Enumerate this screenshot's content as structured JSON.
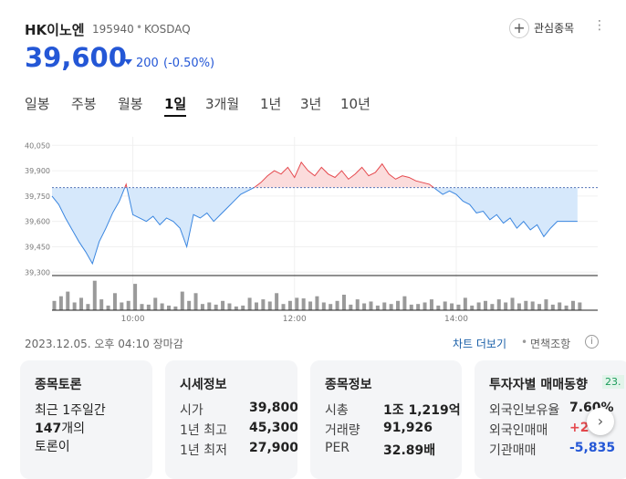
{
  "header": {
    "name": "HK이노엔",
    "code": "195940",
    "market": "KOSDAQ",
    "watch": "관심종목",
    "price": "39,600",
    "change": "200",
    "change_pct": "(-0.50%)"
  },
  "tabs": [
    "일봉",
    "주봉",
    "월봉",
    "1일",
    "3개월",
    "1년",
    "3년",
    "10년"
  ],
  "active_tab": 3,
  "chart": {
    "type": "line",
    "x": [
      0,
      5,
      10,
      15,
      20,
      25,
      30,
      35,
      40,
      45,
      50,
      55,
      60,
      65,
      70,
      75,
      80,
      85,
      90,
      95,
      100,
      105,
      110,
      115,
      120,
      125,
      130,
      135,
      140,
      145,
      150,
      155,
      160,
      165,
      170,
      175,
      180,
      185,
      190,
      195,
      200,
      205,
      210,
      215,
      220,
      225,
      230,
      235,
      240,
      245,
      250,
      255,
      260,
      265,
      270,
      275,
      280,
      285,
      290,
      295,
      300,
      305,
      310,
      315,
      320,
      325,
      330,
      335,
      340,
      345,
      350,
      355,
      360,
      365,
      370,
      375,
      380,
      385,
      390
    ],
    "values": [
      39750,
      39700,
      39620,
      39550,
      39480,
      39420,
      39350,
      39480,
      39560,
      39650,
      39720,
      39820,
      39640,
      39620,
      39600,
      39630,
      39580,
      39620,
      39600,
      39560,
      39450,
      39640,
      39620,
      39650,
      39600,
      39640,
      39680,
      39720,
      39760,
      39780,
      39800,
      39830,
      39870,
      39900,
      39880,
      39920,
      39860,
      39950,
      39900,
      39870,
      39920,
      39880,
      39860,
      39900,
      39850,
      39880,
      39920,
      39870,
      39890,
      39940,
      39880,
      39850,
      39870,
      39860,
      39840,
      39830,
      39820,
      39790,
      39760,
      39780,
      39760,
      39720,
      39700,
      39650,
      39660,
      39610,
      39640,
      39590,
      39620,
      39560,
      39600,
      39550,
      39580,
      39510,
      39560,
      39600,
      39600,
      39600,
      39600
    ],
    "reference": 39800,
    "up_color": "#e5484d",
    "down_color": "#3a86e0",
    "up_fill": "#fbdcdc",
    "down_fill": "#d6e8fb",
    "xlim": [
      0,
      405
    ],
    "xticks": [
      {
        "value": 60,
        "label": "10:00"
      },
      {
        "value": 180,
        "label": "12:00"
      },
      {
        "value": 300,
        "label": "14:00"
      }
    ],
    "ylim": [
      39280,
      40100
    ],
    "yticks": [
      {
        "value": 40050,
        "label": "40,050"
      },
      {
        "value": 39900,
        "label": "39,900"
      },
      {
        "value": 39750,
        "label": "39,750"
      },
      {
        "value": 39600,
        "label": "39,600"
      },
      {
        "value": 39450,
        "label": "39,450"
      },
      {
        "value": 39300,
        "label": "39,300"
      }
    ],
    "volume": [
      30,
      45,
      60,
      25,
      40,
      20,
      95,
      35,
      15,
      55,
      25,
      30,
      85,
      20,
      18,
      40,
      22,
      15,
      12,
      60,
      30,
      55,
      20,
      25,
      18,
      30,
      22,
      12,
      15,
      40,
      25,
      35,
      28,
      55,
      20,
      30,
      40,
      38,
      28,
      45,
      25,
      20,
      30,
      50,
      18,
      35,
      22,
      28,
      15,
      25,
      20,
      30,
      45,
      18,
      20,
      25,
      35,
      15,
      28,
      22,
      18,
      40,
      15,
      25,
      30,
      20,
      35,
      25,
      40,
      22,
      30,
      28,
      20,
      35,
      18,
      25,
      15,
      30,
      25
    ],
    "volume_ylim": [
      0,
      100
    ],
    "volume_color": "#9a9a9a"
  },
  "footer": {
    "time": "2023.12.05. 오후 04:10 장마감",
    "more": "차트 더보기",
    "disclaimer": "면책조항"
  },
  "cards": [
    {
      "title": "종목토론",
      "line1": "최근 1주일간",
      "count": "147",
      "suffix": "개의",
      "line3": "토론이"
    },
    {
      "title": "시세정보",
      "rows": [
        [
          "시가",
          "39,800"
        ],
        [
          "1년 최고",
          "45,300"
        ],
        [
          "1년 최저",
          "27,900"
        ]
      ]
    },
    {
      "title": "종목정보",
      "rows": [
        [
          "시총",
          "1조 1,219억"
        ],
        [
          "거래량",
          "91,926"
        ],
        [
          "PER",
          "32.89배"
        ]
      ]
    },
    {
      "title": "투자자별 매매동향",
      "badge": "23.",
      "rows": [
        [
          "외국인보유율",
          "7.60%"
        ],
        [
          "외국인매매",
          "+2"
        ],
        [
          "기관매매",
          "-5,835"
        ]
      ],
      "value_colors": [
        "#222",
        "#e5484d",
        "#2457d6"
      ]
    }
  ]
}
